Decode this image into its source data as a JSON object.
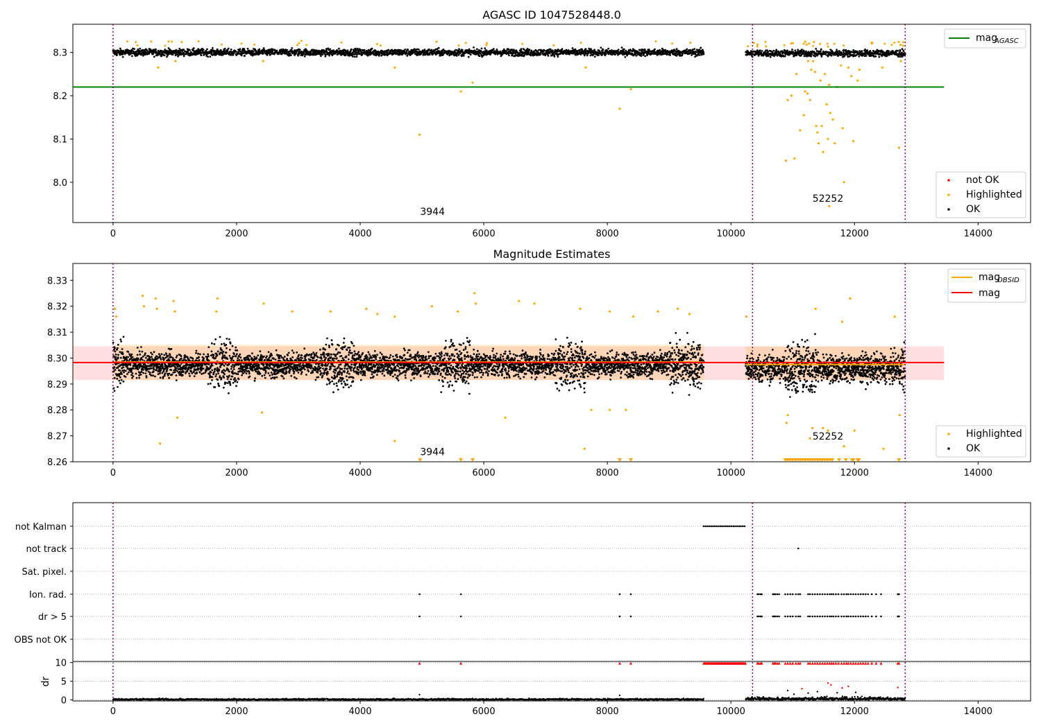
{
  "chart_data": [
    {
      "type": "scatter",
      "title": "AGASC ID 1047528448.0",
      "xlim": [
        -650,
        14850
      ],
      "ylim": [
        7.907,
        8.365
      ],
      "xticks": [
        0,
        2000,
        4000,
        6000,
        8000,
        10000,
        12000,
        14000
      ],
      "yticks": [
        8.0,
        8.1,
        8.2,
        8.3
      ],
      "vlines": [
        0,
        10350,
        12820
      ],
      "reference_line": {
        "name": "mag_AGASC",
        "value": 8.22,
        "x": [
          -650,
          13450
        ],
        "color": "#008000"
      },
      "legend_top": {
        "position": "top-right",
        "entries": [
          {
            "label": "mag",
            "sub": "AGASC",
            "color": "#008000"
          }
        ]
      },
      "legend_bottom": {
        "position": "bottom-right",
        "entries": [
          {
            "label": "not OK",
            "color": "#ff0000"
          },
          {
            "label": "Highlighted",
            "color": "#ffa500"
          },
          {
            "label": "OK",
            "color": "#000000"
          }
        ]
      },
      "annotations": [
        {
          "text": "3944",
          "x": 5170,
          "y": 7.925
        },
        {
          "text": "52252",
          "x": 11570,
          "y": 7.955
        }
      ],
      "segments": [
        {
          "x": [
            0,
            9560
          ],
          "center": 8.3,
          "spread": 0.012
        },
        {
          "x": [
            10240,
            12820
          ],
          "center": 8.298,
          "spread": 0.012
        }
      ],
      "highlighted_points": [
        [
          4960,
          8.11
        ],
        [
          5630,
          8.21
        ],
        [
          5820,
          8.23
        ],
        [
          7650,
          8.265
        ],
        [
          8200,
          8.17
        ],
        [
          8380,
          8.215
        ],
        [
          730,
          8.265
        ],
        [
          1010,
          8.28
        ],
        [
          4560,
          8.265
        ],
        [
          2430,
          8.28
        ],
        [
          10890,
          8.05
        ],
        [
          11030,
          8.055
        ],
        [
          10920,
          8.19
        ],
        [
          10980,
          8.2
        ],
        [
          11060,
          8.25
        ],
        [
          11120,
          8.12
        ],
        [
          11180,
          8.155
        ],
        [
          11200,
          8.21
        ],
        [
          11240,
          8.205
        ],
        [
          11280,
          8.19
        ],
        [
          11300,
          8.26
        ],
        [
          11330,
          8.28
        ],
        [
          11360,
          8.255
        ],
        [
          11380,
          8.13
        ],
        [
          11400,
          8.115
        ],
        [
          11420,
          8.09
        ],
        [
          11450,
          8.235
        ],
        [
          11470,
          8.13
        ],
        [
          11490,
          8.07
        ],
        [
          11520,
          8.25
        ],
        [
          11550,
          8.18
        ],
        [
          11570,
          8.1
        ],
        [
          11590,
          8.225
        ],
        [
          11610,
          8.16
        ],
        [
          11650,
          8.145
        ],
        [
          11680,
          8.09
        ],
        [
          11720,
          8.22
        ],
        [
          11780,
          8.27
        ],
        [
          11810,
          8.125
        ],
        [
          11830,
          8.0
        ],
        [
          11950,
          8.245
        ],
        [
          11980,
          8.095
        ],
        [
          12050,
          8.235
        ],
        [
          11590,
          7.945
        ],
        [
          12720,
          8.08
        ],
        [
          11250,
          8.28
        ],
        [
          11900,
          8.265
        ],
        [
          12080,
          8.26
        ],
        [
          12450,
          8.265
        ],
        [
          12750,
          8.28
        ]
      ]
    },
    {
      "type": "scatter",
      "title": "Magnitude Estimates",
      "xlim": [
        -650,
        14850
      ],
      "ylim": [
        8.26,
        8.3365
      ],
      "xticks": [
        0,
        2000,
        4000,
        6000,
        8000,
        10000,
        12000,
        14000
      ],
      "yticks": [
        8.26,
        8.27,
        8.28,
        8.29,
        8.3,
        8.31,
        8.32,
        8.33
      ],
      "vlines": [
        0,
        10350,
        12820
      ],
      "mag_line": {
        "name": "mag",
        "value": 8.2983,
        "band": [
          8.2915,
          8.3045
        ],
        "x": [
          -650,
          13450
        ],
        "color": "#ff0000"
      },
      "mag_obsid": [
        {
          "x": [
            0,
            9560
          ],
          "value": 8.2985,
          "band": [
            8.2915,
            8.3052
          ]
        },
        {
          "x": [
            10240,
            12820
          ],
          "value": 8.2975,
          "band": [
            8.2915,
            8.3045
          ]
        }
      ],
      "legend_top": {
        "position": "top-right",
        "entries": [
          {
            "label": "mag",
            "sub": "OBSID",
            "color": "#ffa500"
          },
          {
            "label": "mag",
            "sub": "",
            "color": "#ff0000"
          }
        ]
      },
      "legend_bottom": {
        "position": "bottom-right",
        "entries": [
          {
            "label": "Highlighted",
            "color": "#ffa500"
          },
          {
            "label": "OK",
            "color": "#000000"
          }
        ]
      },
      "annotations": [
        {
          "text": "3944",
          "x": 5170,
          "y": 8.2625
        },
        {
          "text": "52252",
          "x": 11570,
          "y": 8.2685
        }
      ],
      "segments": [
        {
          "x": [
            0,
            9560
          ],
          "center": 8.2975,
          "spread": 0.006
        },
        {
          "x": [
            10240,
            12820
          ],
          "center": 8.296,
          "spread": 0.007
        }
      ],
      "highlighted_points": [
        [
          30,
          8.319
        ],
        [
          50,
          8.316
        ],
        [
          480,
          8.324
        ],
        [
          500,
          8.32
        ],
        [
          690,
          8.323
        ],
        [
          710,
          8.319
        ],
        [
          980,
          8.322
        ],
        [
          1000,
          8.318
        ],
        [
          1690,
          8.323
        ],
        [
          1670,
          8.318
        ],
        [
          2440,
          8.321
        ],
        [
          2900,
          8.318
        ],
        [
          3520,
          8.318
        ],
        [
          4100,
          8.319
        ],
        [
          4280,
          8.317
        ],
        [
          4560,
          8.316
        ],
        [
          5160,
          8.32
        ],
        [
          5580,
          8.318
        ],
        [
          5850,
          8.325
        ],
        [
          5870,
          8.321
        ],
        [
          6570,
          8.322
        ],
        [
          6820,
          8.321
        ],
        [
          7560,
          8.319
        ],
        [
          8040,
          8.318
        ],
        [
          8420,
          8.316
        ],
        [
          8820,
          8.318
        ],
        [
          9140,
          8.319
        ],
        [
          9330,
          8.317
        ],
        [
          10250,
          8.316
        ],
        [
          11930,
          8.323
        ],
        [
          11370,
          8.319
        ],
        [
          11800,
          8.314
        ],
        [
          12650,
          8.316
        ],
        [
          760,
          8.267
        ],
        [
          1040,
          8.277
        ],
        [
          2410,
          8.279
        ],
        [
          4560,
          8.268
        ],
        [
          6350,
          8.277
        ],
        [
          7630,
          8.265
        ],
        [
          7740,
          8.28
        ],
        [
          8040,
          8.28
        ],
        [
          8300,
          8.28
        ],
        [
          10900,
          8.275
        ],
        [
          10920,
          8.278
        ],
        [
          11280,
          8.269
        ],
        [
          11320,
          8.273
        ],
        [
          11490,
          8.273
        ],
        [
          11570,
          8.272
        ],
        [
          11830,
          8.266
        ],
        [
          12000,
          8.272
        ],
        [
          12470,
          8.265
        ],
        [
          12730,
          8.278
        ]
      ],
      "clipped_points": [
        4970,
        5630,
        5820,
        8200,
        8380,
        10880,
        10920,
        10960,
        11000,
        11040,
        11080,
        11120,
        11160,
        11200,
        11240,
        11280,
        11320,
        11360,
        11400,
        11440,
        11480,
        11520,
        11560,
        11600,
        11640,
        11750,
        11860,
        11960,
        11980,
        12050,
        12070,
        12720
      ]
    },
    {
      "type": "scatter",
      "title": "",
      "xlim": [
        -650,
        14850
      ],
      "xticks": [
        0,
        2000,
        4000,
        6000,
        8000,
        10000,
        12000,
        14000
      ],
      "vlines": [
        0,
        10350,
        12820
      ],
      "flag_rows": [
        "not Kalman",
        "not track",
        "Sat. pixel.",
        "Ion. rad.",
        "dr > 5",
        "OBS not OK"
      ],
      "flags": {
        "not Kalman": {
          "ranges": [
            [
              9560,
              10240
            ]
          ],
          "points": []
        },
        "not track": {
          "ranges": [],
          "points": [
            11090
          ]
        },
        "Sat. pixel.": {
          "ranges": [],
          "points": []
        },
        "Ion. rad.": {
          "ranges": [],
          "points": [
            4960,
            5630,
            8200,
            8380,
            10430,
            10450,
            10480,
            10500,
            10680,
            10700,
            10720,
            10750,
            10780,
            10880,
            10920,
            10960,
            11000,
            11050,
            11090,
            11120,
            11250,
            11280,
            11320,
            11360,
            11400,
            11440,
            11480,
            11520,
            11560,
            11600,
            11630,
            11660,
            11700,
            11740,
            11790,
            11830,
            11870,
            11900,
            11940,
            11980,
            12020,
            12060,
            12100,
            12140,
            12180,
            12220,
            12280,
            12350,
            12430,
            12700,
            12720
          ]
        },
        "dr > 5": {
          "ranges": [],
          "points": [
            4960,
            5630,
            8200,
            8380,
            10430,
            10450,
            10480,
            10500,
            10680,
            10700,
            10720,
            10750,
            10780,
            10880,
            10920,
            10960,
            11000,
            11050,
            11090,
            11120,
            11250,
            11280,
            11320,
            11360,
            11400,
            11440,
            11480,
            11520,
            11560,
            11600,
            11630,
            11660,
            11700,
            11740,
            11790,
            11830,
            11870,
            11900,
            11940,
            11980,
            12020,
            12060,
            12100,
            12140,
            12180,
            12220,
            12280,
            12350,
            12430,
            12700,
            12720
          ]
        },
        "OBS not OK": {
          "ranges": [],
          "points": []
        }
      },
      "dr_panel": {
        "ylabel": "dr",
        "yticks": [
          0,
          5,
          10
        ],
        "ylim": [
          -0.3,
          10.3
        ],
        "clipped_ranges": [
          [
            9560,
            10240
          ]
        ],
        "clipped_points": [
          4960,
          5630,
          8200,
          8380,
          10430,
          10450,
          10480,
          10500,
          10680,
          10700,
          10720,
          10750,
          10780,
          10880,
          10920,
          10960,
          11000,
          11050,
          11090,
          11120,
          11250,
          11280,
          11320,
          11360,
          11400,
          11440,
          11480,
          11520,
          11560,
          11600,
          11630,
          11660,
          11700,
          11740,
          11790,
          11830,
          11870,
          11900,
          11940,
          11980,
          12020,
          12060,
          12100,
          12140,
          12180,
          12220,
          12280,
          12350,
          12430,
          12700,
          12720
        ],
        "outlier_points": [
          [
            4960,
            1.4
          ],
          [
            8200,
            1.2
          ],
          [
            10920,
            2.5
          ],
          [
            11020,
            1.5
          ],
          [
            11150,
            3.0
          ],
          [
            11250,
            1.8
          ],
          [
            11400,
            2.2
          ],
          [
            11570,
            4.5
          ],
          [
            11620,
            4.0
          ],
          [
            11800,
            3.2
          ],
          [
            11900,
            3.6
          ],
          [
            12700,
            3.3
          ],
          [
            11720,
            1.9
          ],
          [
            12020,
            2.0
          ]
        ]
      }
    }
  ]
}
